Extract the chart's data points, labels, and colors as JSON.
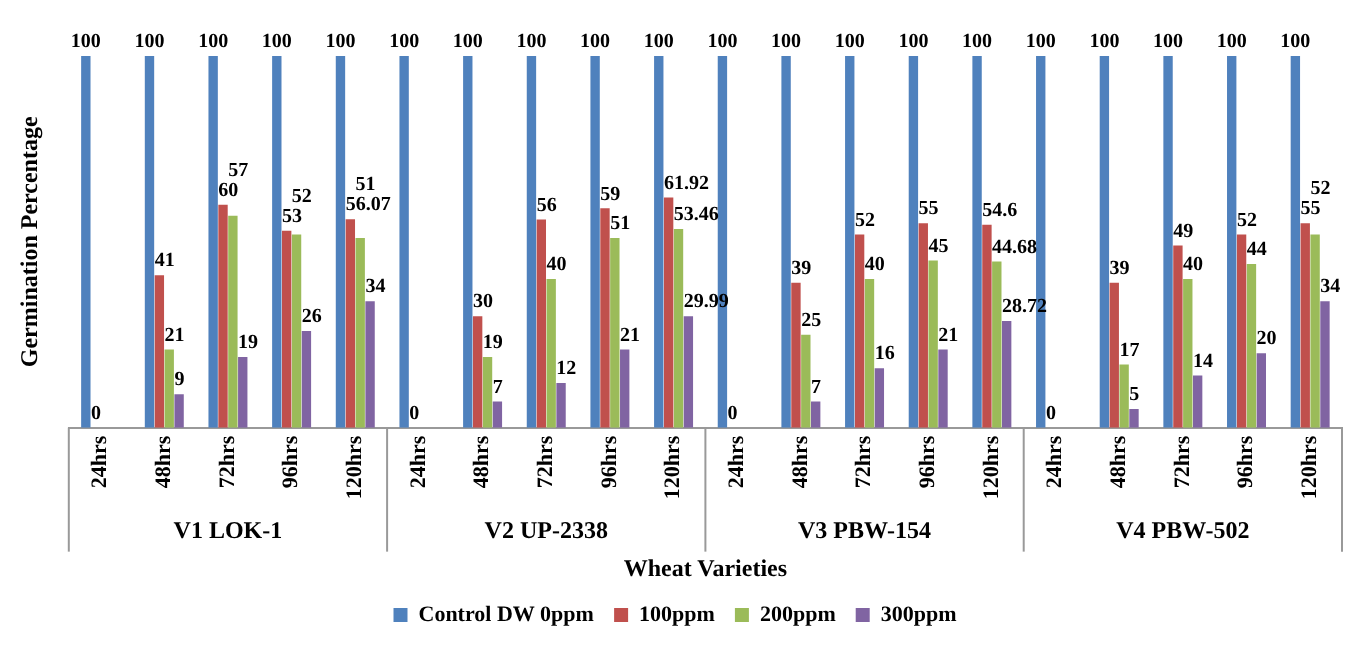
{
  "chart_data": {
    "type": "bar",
    "ylabel": "Germination Percentage",
    "xlabel": "Wheat Varieties",
    "categories": [
      "24hrs",
      "48hrs",
      "72hrs",
      "96hrs",
      "120hrs",
      "24hrs",
      "48hrs",
      "72hrs",
      "96hrs",
      "120hrs",
      "24hrs",
      "48hrs",
      "72hrs",
      "96hrs",
      "120hrs",
      "24hrs",
      "48hrs",
      "72hrs",
      "96hrs",
      "120hrs"
    ],
    "annotations": [
      "V1 LOK-1",
      "V2 UP-2338",
      "V3 PBW-154",
      "V4 PBW-502"
    ],
    "series": [
      {
        "name": "Control DW 0ppm",
        "color": "#4f81bd",
        "values": [
          100,
          100,
          100,
          100,
          100,
          100,
          100,
          100,
          100,
          100,
          100,
          100,
          100,
          100,
          100,
          100,
          100,
          100,
          100,
          100
        ]
      },
      {
        "name": "100ppm",
        "color": "#c0504d",
        "values": [
          0,
          41,
          60,
          53,
          56.07,
          0,
          30,
          56,
          59,
          61.92,
          0,
          39,
          52,
          55,
          54.6,
          0,
          39,
          49,
          52,
          55
        ],
        "value_labels": [
          "0",
          "41",
          "60",
          "53",
          "56.07",
          "0",
          "30",
          "56",
          "59",
          "61.92",
          "0",
          "39",
          "52",
          "55",
          "54.6",
          "0",
          "39",
          "49",
          "52",
          "55"
        ]
      },
      {
        "name": "200ppm",
        "color": "#9bbb59",
        "values": [
          0,
          21,
          57,
          52,
          51,
          0,
          19,
          40,
          51,
          53.46,
          0,
          25,
          40,
          45,
          44.68,
          0,
          17,
          40,
          44,
          52
        ],
        "value_labels": [
          null,
          "21",
          "57",
          "52",
          "51",
          null,
          "19",
          "40",
          "51",
          "53.46",
          null,
          "25",
          "40",
          "45",
          "44.68",
          null,
          "17",
          "40",
          "44",
          "52"
        ]
      },
      {
        "name": "300ppm",
        "color": "#8064a2",
        "values": [
          0,
          9,
          19,
          26,
          34,
          0,
          7,
          12,
          21,
          29.99,
          0,
          7,
          16,
          21,
          28.72,
          0,
          5,
          14,
          20,
          34
        ],
        "value_labels": [
          null,
          "9",
          "19",
          "26",
          "34",
          null,
          "7",
          "12",
          "21",
          "29.99",
          null,
          "7",
          "16",
          "21",
          "28.72",
          null,
          "5",
          "14",
          "20",
          "34"
        ]
      }
    ],
    "data_labels": true,
    "legend": "bottom",
    "grid": false,
    "tick_labels": "x"
  }
}
